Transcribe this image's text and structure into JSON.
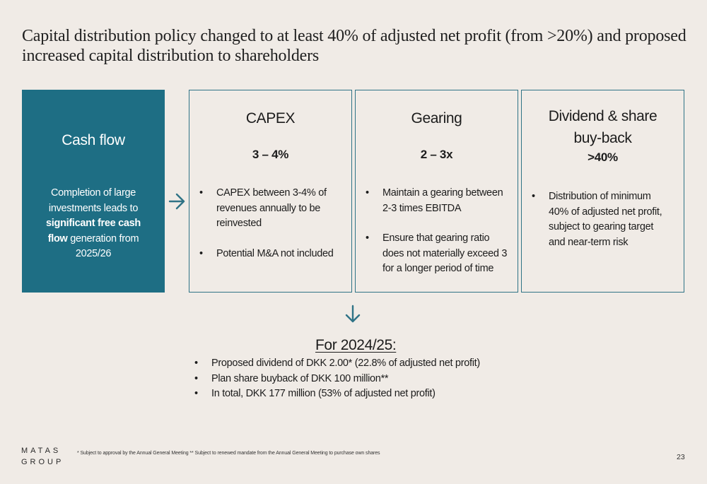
{
  "title": "Capital distribution policy changed to at least 40% of adjusted net profit (from >20%) and proposed increased capital distribution to shareholders",
  "cash_flow": {
    "heading": "Cash flow",
    "body_pre": "Completion of large investments leads to ",
    "body_bold": "significant free cash flow",
    "body_post": " generation from 2025/26"
  },
  "cards": [
    {
      "title": "CAPEX",
      "value": "3 – 4%",
      "bullets": [
        "CAPEX between 3-4% of revenues annually to be reinvested",
        "Potential M&A not included"
      ]
    },
    {
      "title": "Gearing",
      "value": "2 – 3x",
      "bullets": [
        "Maintain a gearing between 2-3 times EBITDA",
        "Ensure that gearing ratio does not materially exceed 3 for a longer period of time"
      ]
    },
    {
      "title": "Dividend & share buy-back",
      "value": ">40%",
      "bullets": [
        "Distribution of minimum 40% of adjusted net profit, subject to gearing target and near-term risk"
      ]
    }
  ],
  "outlook": {
    "title": "For 2024/25:",
    "bullets": [
      "Proposed dividend of DKK 2.00* (22.8% of adjusted net profit)",
      "Plan share buyback of DKK 100 million**",
      "In total, DKK 177 million (53% of adjusted net profit)"
    ]
  },
  "logo": {
    "line1": "MATAS",
    "line2": "GROUP"
  },
  "footnote": "* Subject to approval by the Annual General Meeting  ** Subject to renewed mandate from the Annual General Meeting to purchase own shares",
  "page_number": "23",
  "colors": {
    "accent": "#1e6e84",
    "border": "#2f7386",
    "background": "#f0ebe6"
  },
  "icons": {
    "arrow_right": "arrow-right-icon",
    "arrow_down": "arrow-down-icon"
  }
}
